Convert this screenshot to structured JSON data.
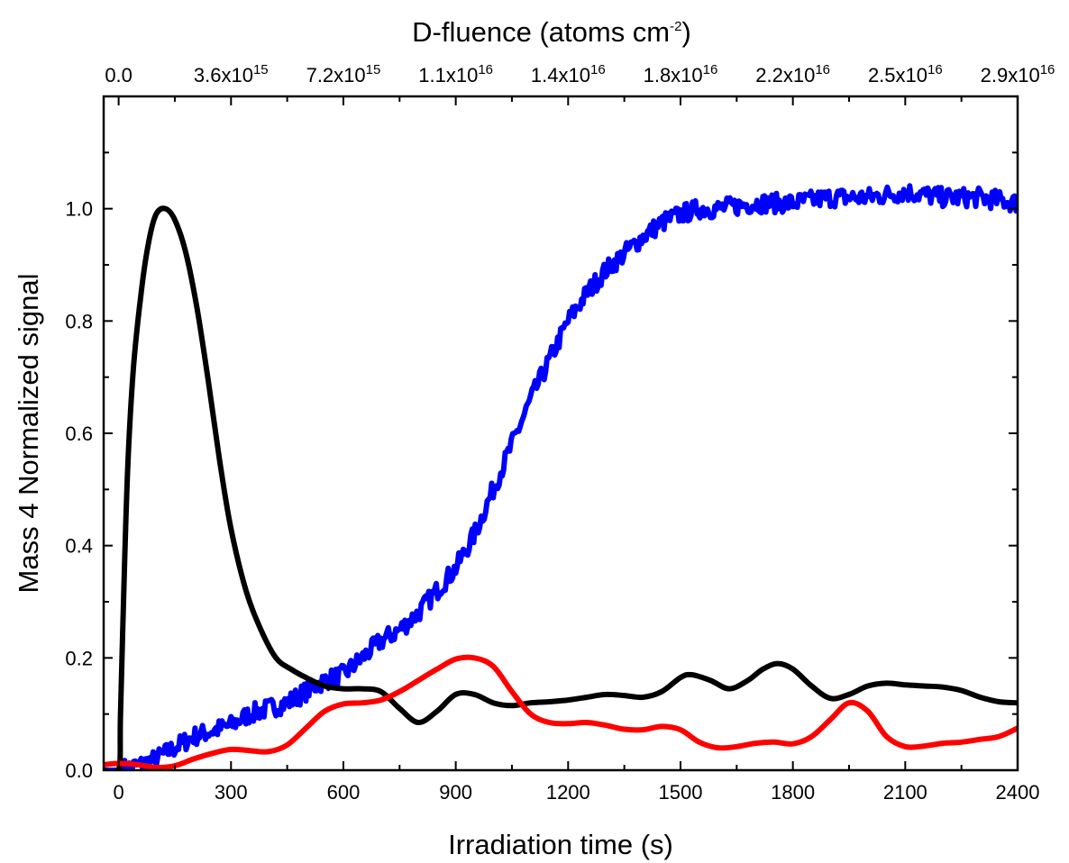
{
  "chart_data": {
    "type": "line",
    "xlabel": "Irradiation time (s)",
    "ylabel": "Mass 4 Normalized signal",
    "top_axis_label": {
      "base": "D-fluence (atoms cm",
      "sup": "-2",
      "close": ")"
    },
    "xlim": [
      -40,
      2400
    ],
    "ylim": [
      0,
      1.2
    ],
    "x_ticks": [
      0,
      300,
      600,
      900,
      1200,
      1500,
      1800,
      2100,
      2400
    ],
    "y_ticks": [
      0.0,
      0.2,
      0.4,
      0.6,
      0.8,
      1.0
    ],
    "y_tick_labels": [
      "0.0",
      "0.2",
      "0.4",
      "0.6",
      "0.8",
      "1.0"
    ],
    "top_ticks": [
      {
        "x": 0,
        "mantissa": "0.0",
        "exp": ""
      },
      {
        "x": 300,
        "mantissa": "3.6x10",
        "exp": "15"
      },
      {
        "x": 600,
        "mantissa": "7.2x10",
        "exp": "15"
      },
      {
        "x": 900,
        "mantissa": "1.1x10",
        "exp": "16"
      },
      {
        "x": 1200,
        "mantissa": "1.4x10",
        "exp": "16"
      },
      {
        "x": 1500,
        "mantissa": "1.8x10",
        "exp": "16"
      },
      {
        "x": 1800,
        "mantissa": "2.2x10",
        "exp": "16"
      },
      {
        "x": 2100,
        "mantissa": "2.5x10",
        "exp": "16"
      },
      {
        "x": 2400,
        "mantissa": "2.9x10",
        "exp": "16"
      }
    ],
    "grid": false,
    "series": [
      {
        "color": "#0000ff",
        "noisy": true,
        "x": [
          -40,
          0,
          30,
          60,
          100,
          150,
          200,
          250,
          300,
          350,
          400,
          450,
          500,
          550,
          600,
          650,
          700,
          750,
          800,
          850,
          900,
          950,
          1000,
          1050,
          1100,
          1150,
          1200,
          1250,
          1300,
          1350,
          1400,
          1450,
          1500,
          1550,
          1600,
          1700,
          1800,
          1900,
          2000,
          2100,
          2200,
          2300,
          2400
        ],
        "y": [
          0.0,
          0.0,
          0.005,
          0.01,
          0.02,
          0.04,
          0.06,
          0.07,
          0.08,
          0.1,
          0.11,
          0.12,
          0.14,
          0.16,
          0.17,
          0.2,
          0.23,
          0.25,
          0.28,
          0.32,
          0.36,
          0.42,
          0.5,
          0.58,
          0.66,
          0.73,
          0.8,
          0.85,
          0.89,
          0.92,
          0.95,
          0.975,
          0.99,
          1.0,
          1.0,
          1.01,
          1.01,
          1.02,
          1.02,
          1.03,
          1.02,
          1.02,
          1.01
        ]
      },
      {
        "color": "#000000",
        "noisy": false,
        "x": [
          -40,
          0,
          5,
          15,
          25,
          40,
          60,
          80,
          100,
          125,
          150,
          180,
          210,
          240,
          270,
          300,
          340,
          380,
          420,
          460,
          500,
          550,
          600,
          650,
          700,
          750,
          800,
          850,
          900,
          950,
          1000,
          1050,
          1100,
          1150,
          1200,
          1250,
          1300,
          1350,
          1400,
          1450,
          1500,
          1530,
          1580,
          1630,
          1680,
          1720,
          1760,
          1800,
          1850,
          1900,
          1950,
          2000,
          2050,
          2100,
          2150,
          2200,
          2250,
          2300,
          2350,
          2400
        ],
        "y": [
          0.0,
          0.0,
          0.1,
          0.35,
          0.55,
          0.72,
          0.85,
          0.94,
          0.99,
          1.0,
          0.98,
          0.92,
          0.82,
          0.69,
          0.55,
          0.43,
          0.32,
          0.25,
          0.2,
          0.18,
          0.165,
          0.15,
          0.145,
          0.145,
          0.14,
          0.11,
          0.085,
          0.105,
          0.135,
          0.135,
          0.12,
          0.115,
          0.12,
          0.122,
          0.125,
          0.13,
          0.135,
          0.133,
          0.13,
          0.14,
          0.165,
          0.17,
          0.16,
          0.145,
          0.16,
          0.18,
          0.19,
          0.18,
          0.15,
          0.128,
          0.135,
          0.15,
          0.155,
          0.152,
          0.15,
          0.148,
          0.142,
          0.13,
          0.122,
          0.12
        ]
      },
      {
        "color": "#ff0000",
        "noisy": false,
        "x": [
          -40,
          0,
          50,
          100,
          150,
          200,
          250,
          300,
          350,
          400,
          450,
          500,
          550,
          600,
          650,
          700,
          750,
          800,
          850,
          900,
          950,
          1000,
          1050,
          1100,
          1150,
          1200,
          1250,
          1300,
          1350,
          1400,
          1450,
          1500,
          1550,
          1600,
          1650,
          1700,
          1750,
          1800,
          1850,
          1900,
          1950,
          2000,
          2050,
          2100,
          2150,
          2200,
          2250,
          2300,
          2350,
          2400
        ],
        "y": [
          0.01,
          0.012,
          0.01,
          0.005,
          0.008,
          0.02,
          0.03,
          0.037,
          0.035,
          0.033,
          0.045,
          0.075,
          0.105,
          0.118,
          0.12,
          0.125,
          0.14,
          0.16,
          0.18,
          0.198,
          0.2,
          0.185,
          0.14,
          0.1,
          0.085,
          0.083,
          0.085,
          0.08,
          0.073,
          0.072,
          0.078,
          0.072,
          0.05,
          0.04,
          0.042,
          0.048,
          0.05,
          0.047,
          0.06,
          0.09,
          0.12,
          0.105,
          0.06,
          0.042,
          0.043,
          0.048,
          0.05,
          0.055,
          0.06,
          0.075
        ]
      }
    ]
  }
}
